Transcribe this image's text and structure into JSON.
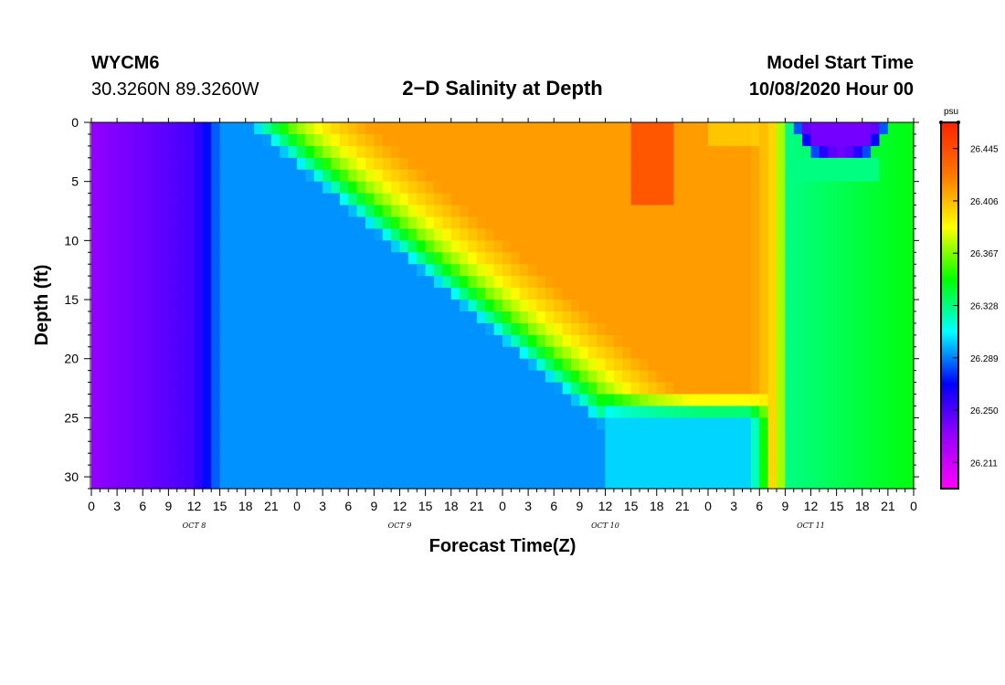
{
  "header": {
    "station": "WYCM6",
    "coords": "30.3260N 89.3260W",
    "title": "2−D Salinity at Depth",
    "model_label": "Model Start Time",
    "model_time": "10/08/2020 Hour 00"
  },
  "chart_data": {
    "type": "heatmap",
    "title": "2−D Salinity at Depth",
    "xlabel": "Forecast Time(Z)",
    "ylabel": "Depth (ft)",
    "x_hours_range": [
      0,
      96
    ],
    "xlim": [
      "10/08/2020 00Z",
      "10/12/2020 00Z"
    ],
    "ylim": [
      0,
      31
    ],
    "y_inverted": true,
    "x_tick_labels": [
      "0",
      "3",
      "6",
      "9",
      "12",
      "15",
      "18",
      "21",
      "0",
      "3",
      "6",
      "9",
      "12",
      "15",
      "18",
      "21",
      "0",
      "3",
      "6",
      "9",
      "12",
      "15",
      "18",
      "21",
      "0",
      "3",
      "6",
      "9",
      "12",
      "15",
      "18",
      "21",
      "0"
    ],
    "y_ticks": [
      0,
      5,
      10,
      15,
      20,
      25,
      30
    ],
    "y_tick_labels": [
      "0",
      "5",
      "10",
      "15",
      "20",
      "25",
      "30"
    ],
    "date_labels": [
      {
        "text": "OCT 8",
        "hour": 12
      },
      {
        "text": "OCT 9",
        "hour": 36
      },
      {
        "text": "OCT 10",
        "hour": 60
      },
      {
        "text": "OCT 11",
        "hour": 84
      }
    ],
    "colorbar": {
      "unit": "psu",
      "min": 26.1915,
      "max": 26.4645,
      "tick_values": [
        26.211,
        26.25,
        26.289,
        26.328,
        26.367,
        26.406,
        26.445
      ],
      "tick_labels": [
        "26.211",
        "26.250",
        "26.289",
        "26.328",
        "26.367",
        "26.406",
        "26.445"
      ],
      "colormap": [
        "#ff00ff",
        "#9900ff",
        "#0000ff",
        "#00ffff",
        "#00ff00",
        "#ffff00",
        "#ff7700",
        "#ff2200"
      ]
    },
    "grid": false,
    "legend": "right"
  }
}
